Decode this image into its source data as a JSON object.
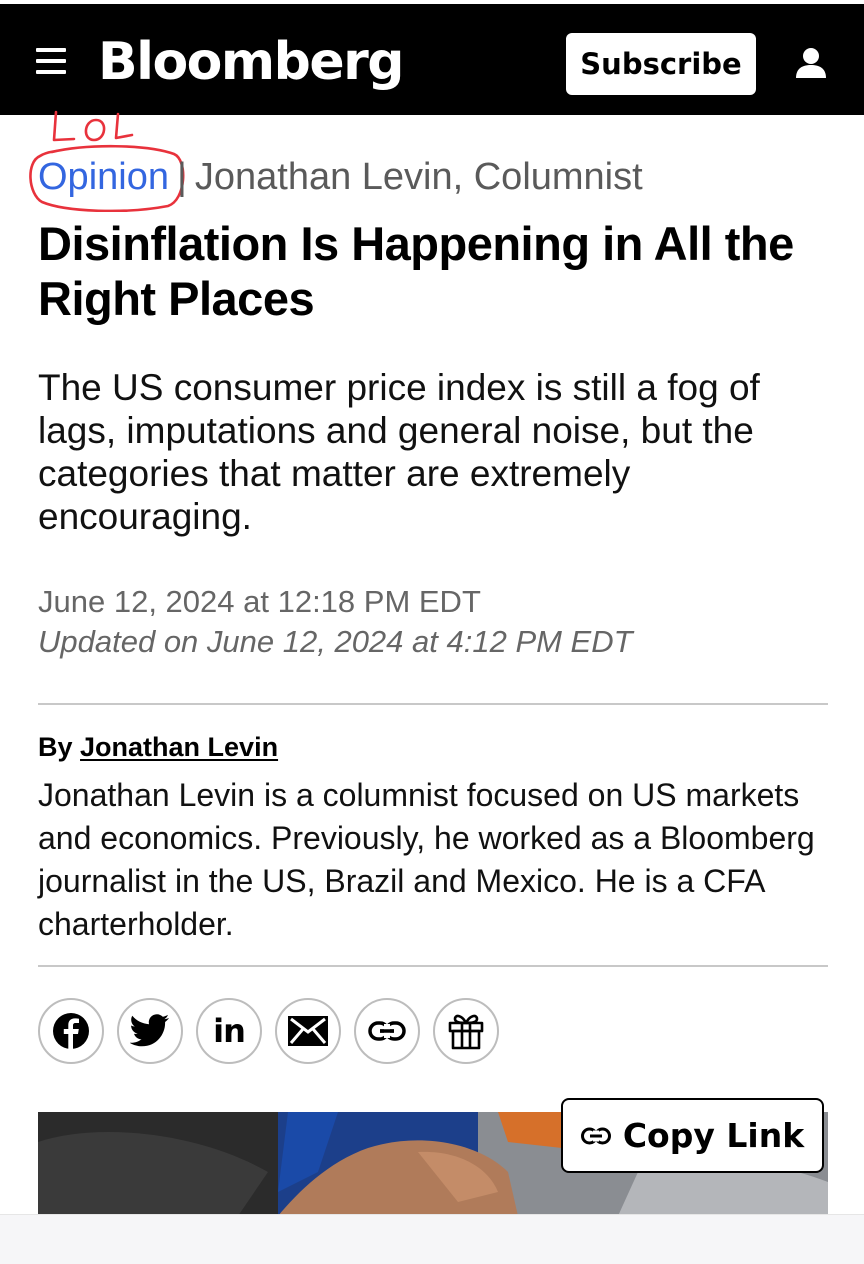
{
  "header": {
    "logo": "Bloomberg",
    "subscribe_label": "Subscribe",
    "menu_icon": "hamburger-menu-icon",
    "account_icon": "user-icon"
  },
  "annotation": {
    "scribble_text": "LOL",
    "color": "#e8323c"
  },
  "article": {
    "section": "Opinion",
    "separator": "|",
    "author_line": "Jonathan Levin, Columnist",
    "headline": "Disinflation Is Happening in All the Right Places",
    "dek": "The US consumer price index is still a fog of lags, imputations and general noise, but the categories that matter are extremely encouraging.",
    "published": "June 12, 2024 at 12:18 PM EDT",
    "updated": "Updated on June 12, 2024 at 4:12 PM EDT"
  },
  "author": {
    "by_prefix": "By",
    "name": "Jonathan Levin",
    "bio": "Jonathan Levin is a columnist focused on US markets and economics. Previously, he worked as a Bloomberg journalist in the US, Brazil and Mexico. He is a CFA charterholder."
  },
  "share": {
    "buttons": [
      "facebook-icon",
      "twitter-icon",
      "linkedin-icon",
      "email-icon",
      "link-icon",
      "gift-icon"
    ],
    "linkedin_text": "in"
  },
  "copy_link": {
    "label": "Copy Link"
  },
  "colors": {
    "accent_link": "#3366e0",
    "header_bg": "#000000",
    "meta_gray": "#666666"
  }
}
